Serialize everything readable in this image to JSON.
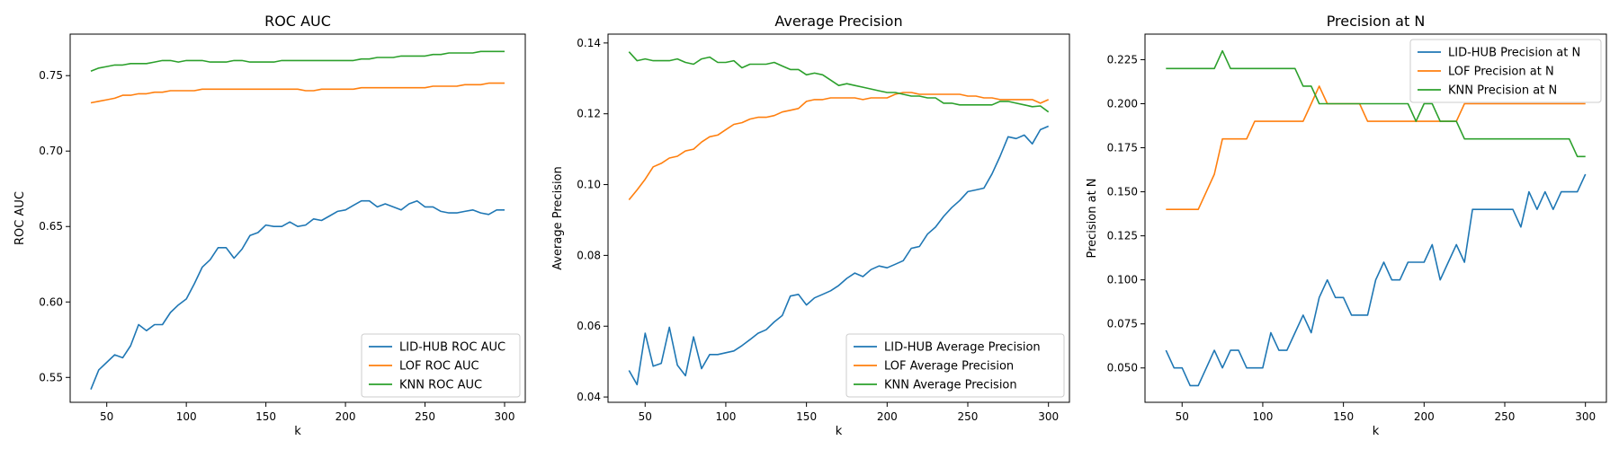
{
  "chart_data": [
    {
      "type": "line",
      "title": "ROC AUC",
      "xlabel": "k",
      "ylabel": "ROC AUC",
      "xlim": [
        27,
        313
      ],
      "ylim": [
        0.5335,
        0.7775
      ],
      "xticks": [
        50,
        100,
        150,
        200,
        250,
        300
      ],
      "yticks": [
        0.55,
        0.6,
        0.65,
        0.7,
        0.75
      ],
      "ytick_labels": [
        "0.55",
        "0.60",
        "0.65",
        "0.70",
        "0.75"
      ],
      "legend_position": "lower right",
      "x": [
        40,
        45,
        50,
        55,
        60,
        65,
        70,
        75,
        80,
        85,
        90,
        95,
        100,
        105,
        110,
        115,
        120,
        125,
        130,
        135,
        140,
        145,
        150,
        155,
        160,
        165,
        170,
        175,
        180,
        185,
        190,
        195,
        200,
        205,
        210,
        215,
        220,
        225,
        230,
        235,
        240,
        245,
        250,
        255,
        260,
        265,
        270,
        275,
        280,
        285,
        290,
        295,
        300
      ],
      "series": [
        {
          "name": "LID-HUB ROC AUC",
          "color": "#1f77b4",
          "values": [
            0.542,
            0.555,
            0.56,
            0.565,
            0.563,
            0.571,
            0.585,
            0.581,
            0.585,
            0.585,
            0.593,
            0.598,
            0.602,
            0.612,
            0.623,
            0.628,
            0.636,
            0.636,
            0.629,
            0.635,
            0.644,
            0.646,
            0.651,
            0.65,
            0.65,
            0.653,
            0.65,
            0.651,
            0.655,
            0.654,
            0.657,
            0.66,
            0.661,
            0.664,
            0.667,
            0.667,
            0.663,
            0.665,
            0.663,
            0.661,
            0.665,
            0.667,
            0.663,
            0.663,
            0.66,
            0.659,
            0.659,
            0.66,
            0.661,
            0.659,
            0.658,
            0.661,
            0.661
          ]
        },
        {
          "name": "LOF ROC AUC",
          "color": "#ff7f0e",
          "values": [
            0.732,
            0.733,
            0.734,
            0.735,
            0.737,
            0.737,
            0.738,
            0.738,
            0.739,
            0.739,
            0.74,
            0.74,
            0.74,
            0.74,
            0.741,
            0.741,
            0.741,
            0.741,
            0.741,
            0.741,
            0.741,
            0.741,
            0.741,
            0.741,
            0.741,
            0.741,
            0.741,
            0.74,
            0.74,
            0.741,
            0.741,
            0.741,
            0.741,
            0.741,
            0.742,
            0.742,
            0.742,
            0.742,
            0.742,
            0.742,
            0.742,
            0.742,
            0.742,
            0.743,
            0.743,
            0.743,
            0.743,
            0.744,
            0.744,
            0.744,
            0.745,
            0.745,
            0.745
          ]
        },
        {
          "name": "KNN ROC AUC",
          "color": "#2ca02c",
          "values": [
            0.753,
            0.755,
            0.756,
            0.757,
            0.757,
            0.758,
            0.758,
            0.758,
            0.759,
            0.76,
            0.76,
            0.759,
            0.76,
            0.76,
            0.76,
            0.759,
            0.759,
            0.759,
            0.76,
            0.76,
            0.759,
            0.759,
            0.759,
            0.759,
            0.76,
            0.76,
            0.76,
            0.76,
            0.76,
            0.76,
            0.76,
            0.76,
            0.76,
            0.76,
            0.761,
            0.761,
            0.762,
            0.762,
            0.762,
            0.763,
            0.763,
            0.763,
            0.763,
            0.764,
            0.764,
            0.765,
            0.765,
            0.765,
            0.765,
            0.766,
            0.766,
            0.766,
            0.766
          ]
        }
      ]
    },
    {
      "type": "line",
      "title": "Average Precision",
      "xlabel": "k",
      "ylabel": "Average Precision",
      "xlim": [
        27,
        313
      ],
      "ylim": [
        0.0385,
        0.1425
      ],
      "xticks": [
        50,
        100,
        150,
        200,
        250,
        300
      ],
      "yticks": [
        0.04,
        0.06,
        0.08,
        0.1,
        0.12,
        0.14
      ],
      "ytick_labels": [
        "0.04",
        "0.06",
        "0.08",
        "0.10",
        "0.12",
        "0.14"
      ],
      "legend_position": "lower right",
      "x": [
        40,
        45,
        50,
        55,
        60,
        65,
        70,
        75,
        80,
        85,
        90,
        95,
        100,
        105,
        110,
        115,
        120,
        125,
        130,
        135,
        140,
        145,
        150,
        155,
        160,
        165,
        170,
        175,
        180,
        185,
        190,
        195,
        200,
        205,
        210,
        215,
        220,
        225,
        230,
        235,
        240,
        245,
        250,
        255,
        260,
        265,
        270,
        275,
        280,
        285,
        290,
        295,
        300
      ],
      "series": [
        {
          "name": "LID-HUB Average Precision",
          "color": "#1f77b4",
          "values": [
            0.0475,
            0.0435,
            0.058,
            0.0487,
            0.0495,
            0.0597,
            0.049,
            0.046,
            0.057,
            0.048,
            0.052,
            0.052,
            0.0525,
            0.053,
            0.0545,
            0.0562,
            0.058,
            0.059,
            0.0612,
            0.063,
            0.0685,
            0.069,
            0.066,
            0.068,
            0.069,
            0.07,
            0.0715,
            0.0735,
            0.075,
            0.074,
            0.076,
            0.077,
            0.0765,
            0.0775,
            0.0785,
            0.082,
            0.0825,
            0.086,
            0.088,
            0.091,
            0.0935,
            0.0955,
            0.098,
            0.0985,
            0.099,
            0.103,
            0.108,
            0.1135,
            0.113,
            0.114,
            0.1115,
            0.1155,
            0.1165
          ]
        },
        {
          "name": "LOF Average Precision",
          "color": "#ff7f0e",
          "values": [
            0.0957,
            0.0985,
            0.1015,
            0.105,
            0.106,
            0.1075,
            0.108,
            0.1095,
            0.11,
            0.112,
            0.1135,
            0.114,
            0.1155,
            0.117,
            0.1175,
            0.1185,
            0.119,
            0.119,
            0.1195,
            0.1205,
            0.121,
            0.1215,
            0.1235,
            0.124,
            0.124,
            0.1245,
            0.1245,
            0.1245,
            0.1245,
            0.124,
            0.1245,
            0.1245,
            0.1245,
            0.1255,
            0.126,
            0.126,
            0.1255,
            0.1255,
            0.1255,
            0.1255,
            0.1255,
            0.1255,
            0.125,
            0.125,
            0.1245,
            0.1245,
            0.124,
            0.124,
            0.124,
            0.124,
            0.124,
            0.123,
            0.124
          ]
        },
        {
          "name": "KNN Average Precision",
          "color": "#2ca02c",
          "values": [
            0.1375,
            0.135,
            0.1355,
            0.135,
            0.135,
            0.135,
            0.1355,
            0.1345,
            0.134,
            0.1355,
            0.136,
            0.1345,
            0.1345,
            0.135,
            0.133,
            0.134,
            0.134,
            0.134,
            0.1345,
            0.1335,
            0.1325,
            0.1325,
            0.131,
            0.1315,
            0.131,
            0.1295,
            0.128,
            0.1285,
            0.128,
            0.1275,
            0.127,
            0.1265,
            0.126,
            0.126,
            0.1255,
            0.125,
            0.125,
            0.1245,
            0.1245,
            0.123,
            0.123,
            0.1225,
            0.1225,
            0.1225,
            0.1225,
            0.1225,
            0.1235,
            0.1235,
            0.123,
            0.1225,
            0.122,
            0.1222,
            0.1205
          ]
        }
      ]
    },
    {
      "type": "line",
      "title": "Precision at N",
      "xlabel": "k",
      "ylabel": "Precision at N",
      "xlim": [
        27,
        313
      ],
      "ylim": [
        0.0305,
        0.2395
      ],
      "xticks": [
        50,
        100,
        150,
        200,
        250,
        300
      ],
      "yticks": [
        0.05,
        0.075,
        0.1,
        0.125,
        0.15,
        0.175,
        0.2,
        0.225
      ],
      "ytick_labels": [
        "0.050",
        "0.075",
        "0.100",
        "0.125",
        "0.150",
        "0.175",
        "0.200",
        "0.225"
      ],
      "legend_position": "upper right",
      "x": [
        40,
        45,
        50,
        55,
        60,
        65,
        70,
        75,
        80,
        85,
        90,
        95,
        100,
        105,
        110,
        115,
        120,
        125,
        130,
        135,
        140,
        145,
        150,
        155,
        160,
        165,
        170,
        175,
        180,
        185,
        190,
        195,
        200,
        205,
        210,
        215,
        220,
        225,
        230,
        235,
        240,
        245,
        250,
        255,
        260,
        265,
        270,
        275,
        280,
        285,
        290,
        295,
        300
      ],
      "series": [
        {
          "name": "LID-HUB Precision at N",
          "color": "#1f77b4",
          "values": [
            0.06,
            0.05,
            0.05,
            0.04,
            0.04,
            0.05,
            0.06,
            0.05,
            0.06,
            0.06,
            0.05,
            0.05,
            0.05,
            0.07,
            0.06,
            0.06,
            0.07,
            0.08,
            0.07,
            0.09,
            0.1,
            0.09,
            0.09,
            0.08,
            0.08,
            0.08,
            0.1,
            0.11,
            0.1,
            0.1,
            0.11,
            0.11,
            0.11,
            0.12,
            0.1,
            0.11,
            0.12,
            0.11,
            0.14,
            0.14,
            0.14,
            0.14,
            0.14,
            0.14,
            0.13,
            0.15,
            0.14,
            0.15,
            0.14,
            0.15,
            0.15,
            0.15,
            0.16
          ]
        },
        {
          "name": "LOF Precision at N",
          "color": "#ff7f0e",
          "values": [
            0.14,
            0.14,
            0.14,
            0.14,
            0.14,
            0.15,
            0.16,
            0.18,
            0.18,
            0.18,
            0.18,
            0.19,
            0.19,
            0.19,
            0.19,
            0.19,
            0.19,
            0.19,
            0.2,
            0.21,
            0.2,
            0.2,
            0.2,
            0.2,
            0.2,
            0.19,
            0.19,
            0.19,
            0.19,
            0.19,
            0.19,
            0.19,
            0.19,
            0.19,
            0.19,
            0.19,
            0.19,
            0.2,
            0.2,
            0.2,
            0.2,
            0.2,
            0.2,
            0.2,
            0.2,
            0.2,
            0.2,
            0.2,
            0.2,
            0.2,
            0.2,
            0.2,
            0.2
          ]
        },
        {
          "name": "KNN Precision at N",
          "color": "#2ca02c",
          "values": [
            0.22,
            0.22,
            0.22,
            0.22,
            0.22,
            0.22,
            0.22,
            0.23,
            0.22,
            0.22,
            0.22,
            0.22,
            0.22,
            0.22,
            0.22,
            0.22,
            0.22,
            0.21,
            0.21,
            0.2,
            0.2,
            0.2,
            0.2,
            0.2,
            0.2,
            0.2,
            0.2,
            0.2,
            0.2,
            0.2,
            0.2,
            0.19,
            0.2,
            0.2,
            0.19,
            0.19,
            0.19,
            0.18,
            0.18,
            0.18,
            0.18,
            0.18,
            0.18,
            0.18,
            0.18,
            0.18,
            0.18,
            0.18,
            0.18,
            0.18,
            0.18,
            0.17,
            0.17
          ]
        }
      ]
    }
  ]
}
